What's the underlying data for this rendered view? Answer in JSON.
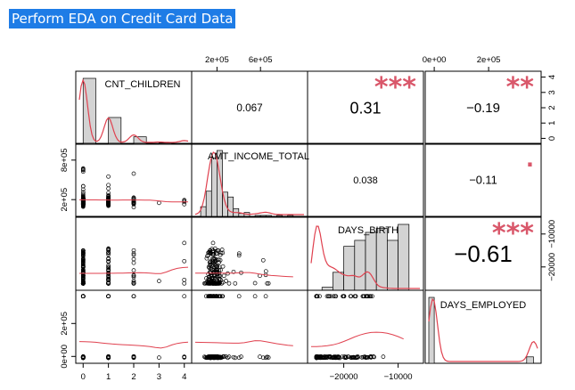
{
  "header": {
    "title": "Perform EDA on Credit Card Data"
  },
  "chart_data": {
    "type": "scatter",
    "variables": [
      "CNT_CHILDREN",
      "AMT_INCOME_TOTAL",
      "DAYS_BIRTH",
      "DAYS_EMPLOYED"
    ],
    "ranges": {
      "CNT_CHILDREN": [
        -0.15,
        4.15
      ],
      "AMT_INCOME_TOTAL": [
        0,
        1000000
      ],
      "DAYS_BIRTH": [
        -26000,
        -6000
      ],
      "DAYS_EMPLOYED": [
        -20000,
        380000
      ]
    },
    "ticks": {
      "top": [
        {
          "col": 1,
          "labels": [
            "2e+05",
            "6e+05"
          ],
          "values": [
            200000,
            600000
          ]
        },
        {
          "col": 3,
          "labels": [
            "0e+00",
            "2e+05"
          ],
          "values": [
            0,
            200000
          ]
        }
      ],
      "bottom": [
        {
          "col": 0,
          "labels": [
            "0",
            "1",
            "2",
            "3",
            "4"
          ],
          "values": [
            0,
            1,
            2,
            3,
            4
          ]
        },
        {
          "col": 2,
          "labels": [
            "-20000",
            "-10000"
          ],
          "values": [
            -20000,
            -10000
          ]
        }
      ],
      "left": [
        {
          "row": 1,
          "labels": [
            "2e+05",
            "8e+05"
          ],
          "values": [
            200000,
            800000
          ]
        },
        {
          "row": 3,
          "labels": [
            "0e+00",
            "2e+05"
          ],
          "values": [
            0,
            200000
          ]
        }
      ],
      "right": [
        {
          "row": 0,
          "labels": [
            "0",
            "1",
            "2",
            "3",
            "4"
          ],
          "values": [
            0,
            1,
            2,
            3,
            4
          ]
        },
        {
          "row": 2,
          "labels": [
            "-20000",
            "-10000"
          ],
          "values": [
            -20000,
            -10000
          ]
        }
      ]
    },
    "correlations": [
      {
        "row": 0,
        "col": 1,
        "value": "0.067",
        "stars": ""
      },
      {
        "row": 0,
        "col": 2,
        "value": "0.31",
        "stars": "***"
      },
      {
        "row": 0,
        "col": 3,
        "value": "-0.19",
        "stars": "**"
      },
      {
        "row": 1,
        "col": 2,
        "value": "0.038",
        "stars": ""
      },
      {
        "row": 1,
        "col": 3,
        "value": "-0.11",
        "stars": "."
      },
      {
        "row": 2,
        "col": 3,
        "value": "-0.61",
        "stars": "***"
      }
    ],
    "histograms": {
      "CNT_CHILDREN": {
        "bins": [
          0,
          0.5,
          1,
          1.5,
          2,
          2.5,
          3,
          3.5,
          4
        ],
        "counts": [
          133,
          0,
          54,
          0,
          15,
          0,
          3,
          0
        ]
      },
      "AMT_INCOME_TOTAL": {
        "bins": [
          50000,
          100000,
          150000,
          200000,
          250000,
          300000,
          350000,
          400000,
          450000,
          500000,
          550000,
          600000,
          650000,
          700000,
          750000,
          800000,
          850000,
          900000
        ],
        "counts": [
          10,
          26,
          60,
          68,
          25,
          20,
          8,
          3,
          4,
          0,
          1,
          1,
          1,
          0,
          1,
          0,
          1
        ]
      },
      "DAYS_BIRTH": {
        "bins": [
          -24000,
          -22000,
          -20000,
          -18000,
          -16000,
          -14000,
          -12000,
          -10000,
          -8000
        ],
        "counts": [
          3,
          18,
          44,
          50,
          58,
          62,
          50,
          66
        ]
      },
      "DAYS_EMPLOYED": {
        "bins": [
          -20000,
          0,
          20000,
          340000,
          365000
        ],
        "counts": [
          205,
          0,
          0,
          20
        ]
      }
    },
    "scatter_note": "pairwise scatter of the four variables with lowess smooth in red; diagonal shows histogram with red density curve",
    "colors": {
      "points": "#000000",
      "smooth": "#e0414f",
      "hist_fill": "#d3d3d3",
      "stars": "#d9576a",
      "title_bg": "#1e7ce6"
    }
  }
}
